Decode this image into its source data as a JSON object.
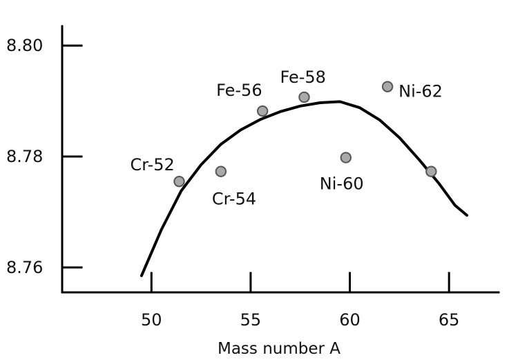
{
  "chart_data": {
    "type": "scatter",
    "title": "",
    "xlabel": "Mass number A",
    "ylabel": "",
    "xlim": [
      45.5,
      67.5
    ],
    "ylim": [
      8.7555,
      8.8035
    ],
    "xticks": [
      50,
      55,
      60,
      65
    ],
    "yticks": [
      8.76,
      8.78,
      8.8
    ],
    "xtick_labels": [
      "50",
      "55",
      "60",
      "65"
    ],
    "ytick_labels": [
      "8.76",
      "8.78",
      "8.80"
    ],
    "grid": false,
    "legend": "none",
    "colors": {
      "axis": "#000000",
      "curve": "#000000",
      "point_fill": "#a9a9a9",
      "point_stroke": "#555555"
    },
    "series": [
      {
        "type": "scatter",
        "values": [
          {
            "x": 51.4,
            "y": 8.7755,
            "label": "Cr-52"
          },
          {
            "x": 53.5,
            "y": 8.7773,
            "label": "Cr-54"
          },
          {
            "x": 55.6,
            "y": 8.7882,
            "label": "Fe-56"
          },
          {
            "x": 57.7,
            "y": 8.7907,
            "label": "Fe-58"
          },
          {
            "x": 59.8,
            "y": 8.7798,
            "label": "Ni-60"
          },
          {
            "x": 61.9,
            "y": 8.7926,
            "label": "Ni-62"
          },
          {
            "x": 64.1,
            "y": 8.7773,
            "label": ""
          }
        ]
      },
      {
        "type": "line",
        "values": [
          {
            "x": 49.5,
            "y": 8.7585
          },
          {
            "x": 50.5,
            "y": 8.7668
          },
          {
            "x": 51.5,
            "y": 8.7738
          },
          {
            "x": 52.5,
            "y": 8.7785
          },
          {
            "x": 53.5,
            "y": 8.7822
          },
          {
            "x": 54.5,
            "y": 8.7848
          },
          {
            "x": 55.5,
            "y": 8.7867
          },
          {
            "x": 56.5,
            "y": 8.7881
          },
          {
            "x": 57.5,
            "y": 8.7891
          },
          {
            "x": 58.5,
            "y": 8.7897
          },
          {
            "x": 59.5,
            "y": 8.7899
          },
          {
            "x": 60.5,
            "y": 8.7888
          },
          {
            "x": 61.5,
            "y": 8.7866
          },
          {
            "x": 62.5,
            "y": 8.7834
          },
          {
            "x": 63.5,
            "y": 8.7794
          },
          {
            "x": 64.5,
            "y": 8.7751
          },
          {
            "x": 65.3,
            "y": 8.7712
          },
          {
            "x": 65.9,
            "y": 8.7694
          }
        ]
      }
    ]
  }
}
